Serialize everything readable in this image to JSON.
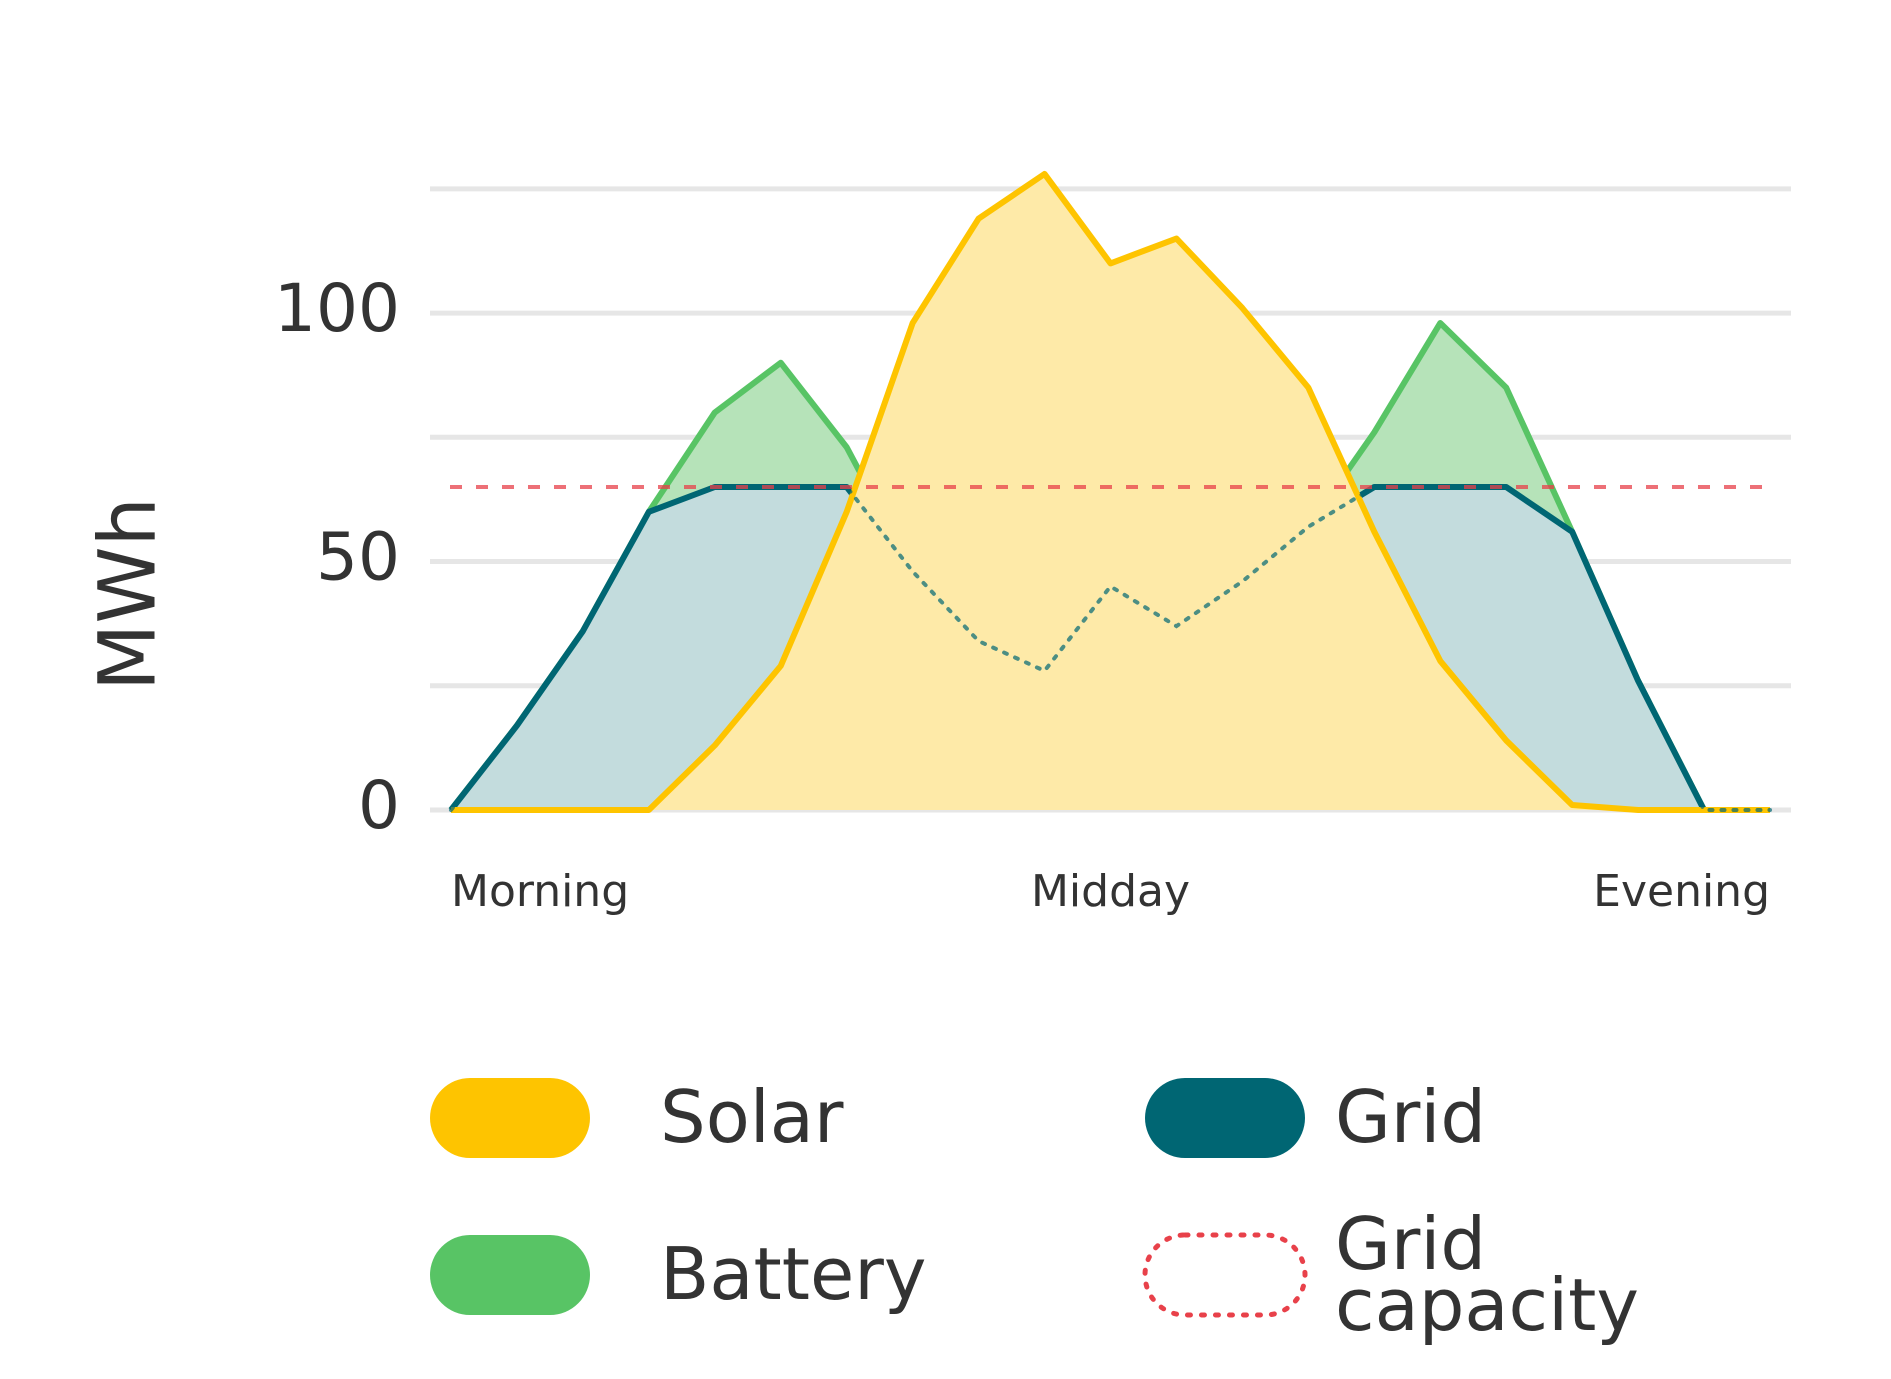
{
  "chart_data": {
    "type": "area",
    "y_label": "MWh",
    "x": [
      0,
      5,
      10,
      15,
      20,
      25,
      30,
      35,
      40,
      45,
      50,
      55,
      60,
      65,
      70,
      75,
      80,
      85,
      90,
      95,
      100
    ],
    "xlim": [
      0,
      100
    ],
    "xticks": [
      {
        "value": 0,
        "label": "Morning"
      },
      {
        "value": 50,
        "label": "Midday"
      },
      {
        "value": 100,
        "label": "Evening"
      }
    ],
    "ylim": [
      0,
      130
    ],
    "yticks": [
      0,
      50,
      100
    ],
    "minor_yticks": [
      25,
      75,
      125
    ],
    "grid": true,
    "series": [
      {
        "name": "Solar",
        "color": "#fec400",
        "fill": "#feeaa8",
        "values": [
          0,
          0,
          0,
          0,
          13,
          29,
          60,
          98,
          119,
          128,
          110,
          115,
          101,
          85,
          56,
          30,
          14,
          1,
          0,
          0,
          0
        ]
      },
      {
        "name": "Battery",
        "color": "#58c465",
        "fill": "#b6e3b9",
        "values": [
          0,
          17,
          36,
          60,
          80,
          90,
          73,
          48,
          34,
          28,
          45,
          37,
          46,
          57,
          76,
          98,
          85,
          56,
          26,
          0,
          0
        ]
      },
      {
        "name": "Grid",
        "color": "#006673",
        "fill": "#c3dcdd",
        "values": [
          0,
          17,
          36,
          60,
          65,
          65,
          65,
          48,
          34,
          28,
          45,
          37,
          46,
          57,
          65,
          65,
          65,
          56,
          26,
          0,
          0
        ]
      }
    ],
    "reference_lines": [
      {
        "name": "Grid capacity",
        "value": 65,
        "color": "#e8414a"
      }
    ]
  }
}
